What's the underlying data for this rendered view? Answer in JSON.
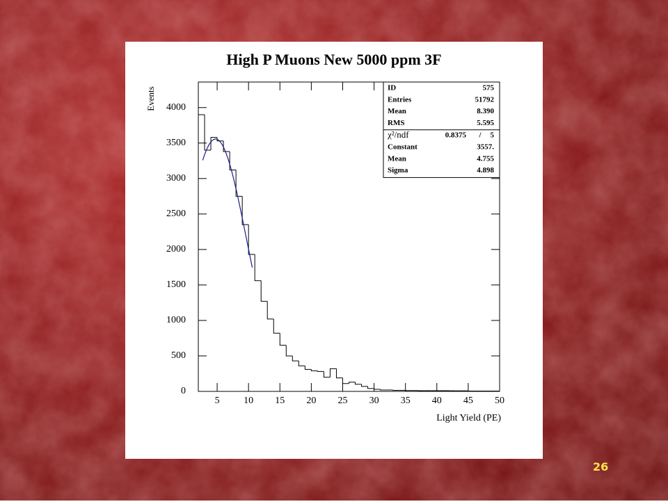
{
  "chart_data": {
    "type": "histogram",
    "title": "High P Muons New 5000 ppm 3F",
    "x_label": "Light Yield (PE)",
    "y_label": "Events",
    "bins": [
      2,
      3,
      4,
      5,
      6,
      7,
      8,
      9,
      10,
      11,
      12,
      13,
      14,
      15,
      16,
      17,
      18,
      19,
      20,
      21,
      22,
      23,
      24,
      25,
      26,
      27,
      28,
      29,
      30,
      31,
      32,
      33,
      34,
      35,
      36,
      37,
      38,
      39,
      40,
      41,
      42,
      43,
      44,
      45,
      46,
      47,
      48,
      49,
      50
    ],
    "values": [
      3900,
      3400,
      3580,
      3530,
      3380,
      3120,
      2750,
      2350,
      1930,
      1560,
      1270,
      1020,
      820,
      650,
      500,
      430,
      360,
      310,
      290,
      280,
      200,
      320,
      190,
      110,
      130,
      100,
      70,
      40,
      30,
      20,
      20,
      15,
      15,
      12,
      12,
      10,
      10,
      10,
      10,
      10,
      8,
      8,
      8,
      5,
      5,
      5,
      5,
      5
    ],
    "color": "#000000",
    "xlim": [
      2,
      50
    ],
    "ylim": [
      0,
      4360
    ],
    "xticks": [
      5,
      10,
      15,
      20,
      25,
      30,
      35,
      40,
      45,
      50
    ],
    "yticks": [
      0,
      500,
      1000,
      1500,
      2000,
      2500,
      3000,
      3500,
      4000
    ],
    "stats": [
      {
        "name": "ID",
        "value": 575
      },
      {
        "name": "Entries",
        "value": 51792
      },
      {
        "name": "Mean",
        "value": 8.39,
        "label": "8.390"
      },
      {
        "name": "RMS",
        "value": 5.595
      }
    ],
    "fit": {
      "chi2_name": "χ²/ndf",
      "chi2": 0.8375,
      "ndf": 5,
      "sep": "/",
      "params": [
        {
          "name": "Constant",
          "value": 3557,
          "label": "3557."
        },
        {
          "name": "Mean",
          "value": 4.755
        },
        {
          "name": "Sigma",
          "value": 4.898
        }
      ],
      "range": [
        2.7,
        10.6
      ],
      "color": "#1a1a8c"
    },
    "page_number": "26"
  }
}
